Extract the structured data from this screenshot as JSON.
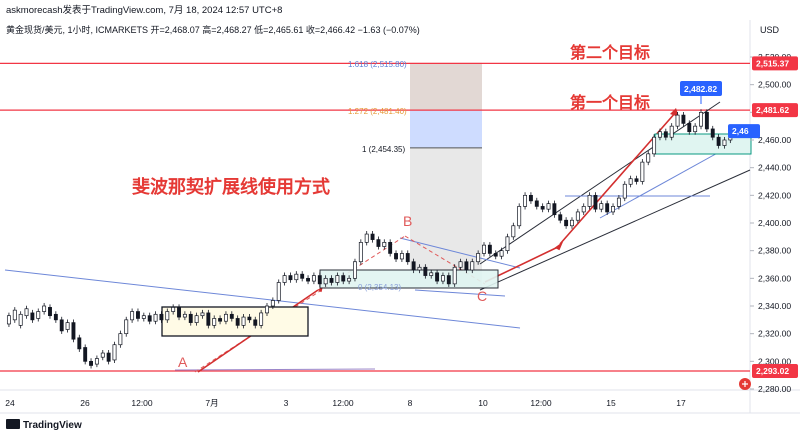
{
  "header": {
    "publisher": "askmorecash发表于TradingView.com, 7月 18, 2024 12:57 UTC+8",
    "currency": "USD",
    "ohlc": "黄金现货/美元, 1小时, ICMARKETS  开=2,468.07  高=2,468.27  低=2,465.61  收=2,466.42  −1.63 (−0.07%)"
  },
  "footer": {
    "brand": "TradingView"
  },
  "annotations": {
    "method_title": "斐波那契扩展线使用方式",
    "target1": "第一个目标",
    "target2": "第二个目标",
    "point_a": "A",
    "point_b": "B",
    "point_c": "C",
    "fib_1618": "1.618 (2,515.80)",
    "fib_1272": "1.272 (2,481.40)",
    "fib_1": "1 (2,454.35)",
    "fib_0": "0 (2,354.13)"
  },
  "price_badges": [
    {
      "text": "2,515.37",
      "price": 2515.37,
      "bg": "#f23645",
      "fg": "#ffffff"
    },
    {
      "text": "2,481.62",
      "price": 2481.62,
      "bg": "#f23645",
      "fg": "#ffffff"
    },
    {
      "text": "2,46",
      "price": 2466.42,
      "bg": "#2962ff",
      "fg": "#ffffff"
    },
    {
      "text": "2,293.02",
      "price": 2293.02,
      "bg": "#f23645",
      "fg": "#ffffff"
    }
  ],
  "high_label": {
    "text": "2,482.82",
    "price": 2482.82
  },
  "colors": {
    "up": "#089981",
    "down": "#f23645",
    "candle": "#131722",
    "accent_red": "#e53935",
    "line_blue": "#5b7fd6",
    "trend_black": "#2a2e39",
    "fib_gray": "#c8c8c8",
    "fib_blue": "#c9d8ff",
    "box_teal_fill": "#e0f5f1",
    "box_teal_border": "#089981",
    "box_yellow_fill": "#fffbe6"
  },
  "chart_data": {
    "type": "candlestick",
    "title": "黄金现货/美元, 1小时, ICMARKETS",
    "ylabel": "USD",
    "ylim": [
      2276,
      2530
    ],
    "y_ticks": [
      "2,520.00",
      "2,500.00",
      "2,480.00",
      "2,460.00",
      "2,440.00",
      "2,420.00",
      "2,400.00",
      "2,380.00",
      "2,360.00",
      "2,340.00",
      "2,320.00",
      "2,300.00",
      "2,280.00"
    ],
    "x_ticks": [
      "24",
      "26",
      "12:00",
      "7月",
      "3",
      "12:00",
      "8",
      "10",
      "12:00",
      "15",
      "17"
    ],
    "price_path": [
      [
        2327,
        2333
      ],
      [
        2330,
        2337
      ],
      [
        2326,
        2334
      ],
      [
        2333,
        2338
      ],
      [
        2335,
        2330
      ],
      [
        2331,
        2336
      ],
      [
        2336,
        2340
      ],
      [
        2339,
        2333
      ],
      [
        2334,
        2330
      ],
      [
        2330,
        2322
      ],
      [
        2323,
        2328
      ],
      [
        2328,
        2316
      ],
      [
        2317,
        2309
      ],
      [
        2310,
        2300
      ],
      [
        2300,
        2297
      ],
      [
        2298,
        2302
      ],
      [
        2303,
        2306
      ],
      [
        2306,
        2300
      ],
      [
        2301,
        2312
      ],
      [
        2312,
        2320
      ],
      [
        2320,
        2330
      ],
      [
        2330,
        2336
      ],
      [
        2336,
        2331
      ],
      [
        2331,
        2333
      ],
      [
        2333,
        2329
      ],
      [
        2329,
        2334
      ],
      [
        2334,
        2330
      ],
      [
        2330,
        2336
      ],
      [
        2336,
        2339
      ],
      [
        2339,
        2332
      ],
      [
        2332,
        2334
      ],
      [
        2334,
        2328
      ],
      [
        2328,
        2333
      ],
      [
        2333,
        2335
      ],
      [
        2335,
        2326
      ],
      [
        2326,
        2331
      ],
      [
        2331,
        2329
      ],
      [
        2329,
        2334
      ],
      [
        2334,
        2331
      ],
      [
        2331,
        2326
      ],
      [
        2326,
        2332
      ],
      [
        2332,
        2330
      ],
      [
        2330,
        2326
      ],
      [
        2326,
        2335
      ],
      [
        2335,
        2340
      ],
      [
        2340,
        2344
      ],
      [
        2344,
        2357
      ],
      [
        2357,
        2362
      ],
      [
        2362,
        2359
      ],
      [
        2359,
        2363
      ],
      [
        2363,
        2360
      ],
      [
        2360,
        2358
      ],
      [
        2358,
        2362
      ],
      [
        2362,
        2356
      ],
      [
        2356,
        2360
      ],
      [
        2360,
        2357
      ],
      [
        2357,
        2362
      ],
      [
        2362,
        2358
      ],
      [
        2358,
        2360
      ],
      [
        2360,
        2372
      ],
      [
        2372,
        2386
      ],
      [
        2386,
        2392
      ],
      [
        2392,
        2388
      ],
      [
        2388,
        2383
      ],
      [
        2383,
        2386
      ],
      [
        2386,
        2378
      ],
      [
        2378,
        2374
      ],
      [
        2374,
        2378
      ],
      [
        2378,
        2372
      ],
      [
        2372,
        2366
      ],
      [
        2366,
        2368
      ],
      [
        2368,
        2362
      ],
      [
        2362,
        2364
      ],
      [
        2364,
        2358
      ],
      [
        2358,
        2362
      ],
      [
        2362,
        2356
      ],
      [
        2356,
        2368
      ],
      [
        2368,
        2372
      ],
      [
        2372,
        2366
      ],
      [
        2366,
        2372
      ],
      [
        2372,
        2378
      ],
      [
        2378,
        2384
      ],
      [
        2384,
        2378
      ],
      [
        2378,
        2376
      ],
      [
        2376,
        2380
      ],
      [
        2380,
        2390
      ],
      [
        2390,
        2398
      ],
      [
        2398,
        2412
      ],
      [
        2412,
        2420
      ],
      [
        2420,
        2416
      ],
      [
        2416,
        2412
      ],
      [
        2412,
        2410
      ],
      [
        2410,
        2414
      ],
      [
        2414,
        2406
      ],
      [
        2406,
        2402
      ],
      [
        2402,
        2398
      ],
      [
        2398,
        2402
      ],
      [
        2402,
        2408
      ],
      [
        2408,
        2412
      ],
      [
        2412,
        2420
      ],
      [
        2420,
        2410
      ],
      [
        2410,
        2414
      ],
      [
        2414,
        2408
      ],
      [
        2408,
        2412
      ],
      [
        2412,
        2418
      ],
      [
        2418,
        2428
      ],
      [
        2428,
        2432
      ],
      [
        2432,
        2430
      ],
      [
        2430,
        2444
      ],
      [
        2444,
        2450
      ],
      [
        2450,
        2462
      ],
      [
        2462,
        2466
      ],
      [
        2466,
        2462
      ],
      [
        2462,
        2470
      ],
      [
        2470,
        2478
      ],
      [
        2478,
        2472
      ],
      [
        2472,
        2466
      ],
      [
        2466,
        2470
      ],
      [
        2470,
        2480
      ],
      [
        2480,
        2468
      ],
      [
        2468,
        2462
      ],
      [
        2462,
        2456
      ],
      [
        2456,
        2460
      ],
      [
        2460,
        2466
      ],
      [
        2466,
        2468
      ],
      [
        2468,
        2466
      ]
    ]
  }
}
